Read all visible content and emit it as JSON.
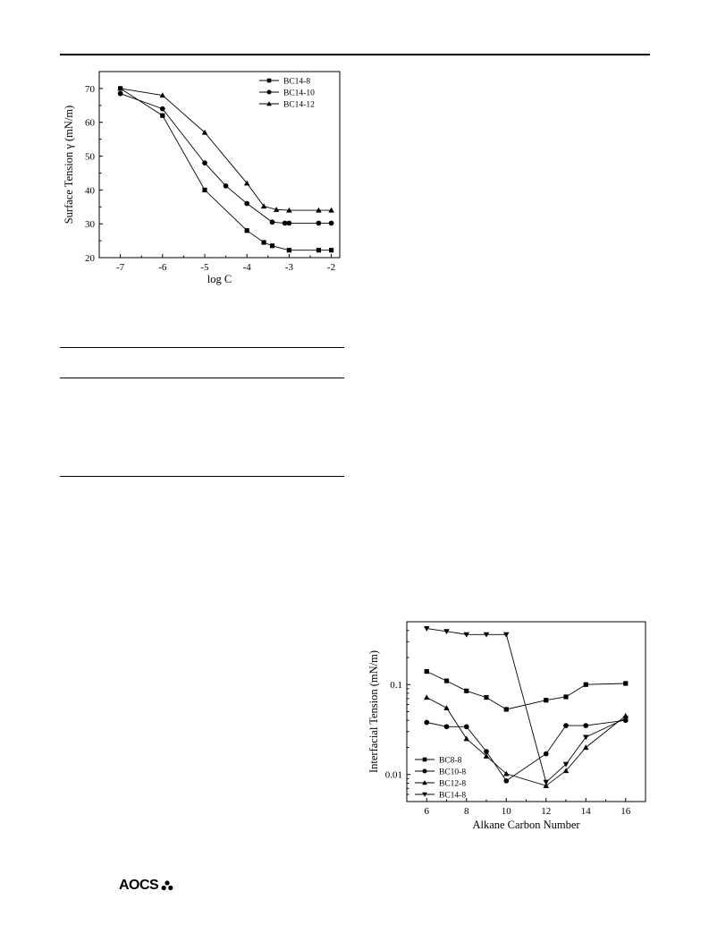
{
  "footer": {
    "logo_text": "AOCS"
  },
  "chart_data": [
    {
      "type": "line",
      "xlabel": "log C",
      "ylabel": "Surface Tension  γ  (mN/m)",
      "xlim": [
        -7.5,
        -1.8
      ],
      "ylim": [
        20,
        75
      ],
      "xticks": [
        -7,
        -6,
        -5,
        -4,
        -3,
        -2
      ],
      "xtick_labels": [
        "-7",
        "-6",
        "-5",
        "-4",
        "-3",
        "-2"
      ],
      "yticks": [
        20,
        30,
        40,
        50,
        60,
        70
      ],
      "ytick_labels": [
        "20",
        "30",
        "40",
        "50",
        "60",
        "70"
      ],
      "legend_position": "top-right",
      "series": [
        {
          "name": "BC14-8",
          "marker": "square",
          "x": [
            -7,
            -6,
            -5,
            -4,
            -3.6,
            -3.4,
            -3,
            -2.3,
            -2
          ],
          "y": [
            70,
            62,
            40,
            28,
            24.5,
            23.5,
            22.2,
            22.2,
            22.2
          ]
        },
        {
          "name": "BC14-10",
          "marker": "circle",
          "x": [
            -7,
            -6,
            -5,
            -4.5,
            -4,
            -3.4,
            -3.1,
            -3,
            -2.3,
            -2
          ],
          "y": [
            68.5,
            64,
            48,
            41.2,
            36,
            30.5,
            30.2,
            30.2,
            30.2,
            30.2
          ]
        },
        {
          "name": "BC14-12",
          "marker": "triangle",
          "x": [
            -7,
            -6,
            -5,
            -4,
            -3.6,
            -3.3,
            -3,
            -2.3,
            -2
          ],
          "y": [
            70,
            68,
            57,
            42,
            35.2,
            34.2,
            34,
            34,
            34
          ]
        }
      ]
    },
    {
      "type": "line",
      "xlabel": "Alkane Carbon Number",
      "ylabel": "Interfacial Tension  (mN/m)",
      "xscale": "linear",
      "yscale": "log",
      "xlim": [
        5,
        17
      ],
      "ylim": [
        0.005,
        0.5
      ],
      "xticks": [
        6,
        8,
        10,
        12,
        14,
        16
      ],
      "xtick_labels": [
        "6",
        "8",
        "10",
        "12",
        "14",
        "16"
      ],
      "yticks": [
        0.01,
        0.1
      ],
      "ytick_labels": [
        "0.01",
        "0.1"
      ],
      "legend_position": "bottom-left",
      "series": [
        {
          "name": "BC8-8",
          "marker": "square",
          "x": [
            6,
            7,
            8,
            9,
            10,
            12,
            13,
            14,
            16
          ],
          "y": [
            0.14,
            0.11,
            0.085,
            0.072,
            0.053,
            0.067,
            0.073,
            0.1,
            0.103
          ]
        },
        {
          "name": "BC10-8",
          "marker": "circle",
          "x": [
            6,
            7,
            8,
            9,
            10,
            12,
            13,
            14,
            16
          ],
          "y": [
            0.038,
            0.034,
            0.034,
            0.018,
            0.0085,
            0.017,
            0.035,
            0.035,
            0.04
          ]
        },
        {
          "name": "BC12-8",
          "marker": "triangle",
          "x": [
            6,
            7,
            8,
            9,
            10,
            12,
            13,
            14,
            16
          ],
          "y": [
            0.072,
            0.055,
            0.025,
            0.016,
            0.0102,
            0.0075,
            0.011,
            0.02,
            0.045
          ]
        },
        {
          "name": "BC14-8",
          "marker": "triangle-down",
          "x": [
            6,
            7,
            8,
            9,
            10,
            12,
            13,
            14,
            16
          ],
          "y": [
            0.42,
            0.39,
            0.36,
            0.36,
            0.36,
            0.0082,
            0.013,
            0.026,
            0.042
          ]
        }
      ]
    }
  ]
}
